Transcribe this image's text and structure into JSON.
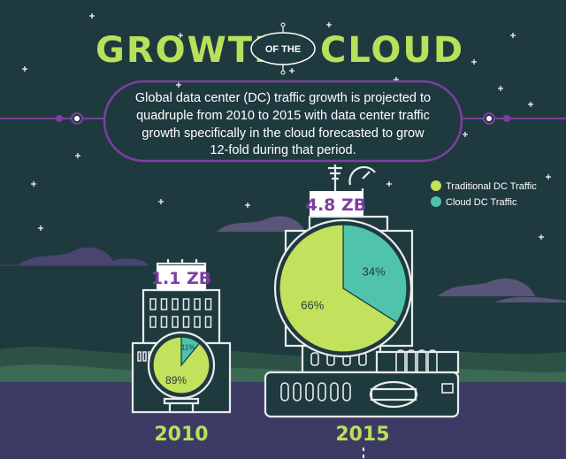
{
  "header": {
    "title_left": "GROWTH",
    "title_middle": "OF THE",
    "title_right": "CLOUD"
  },
  "intro": {
    "lines": [
      "Global data center (DC) traffic growth is projected to",
      "quadruple from 2010 to 2015 with data center traffic",
      "growth specifically in the cloud forecasted to grow",
      "12-fold during that period."
    ]
  },
  "colors": {
    "background": "#1f3a3f",
    "traditional": "#c2e15c",
    "cloud": "#4fc3ab",
    "accent_purple": "#7b3fa0",
    "outline": "#e8ecec"
  },
  "chart_data": {
    "type": "pie",
    "legend_position": "top-right",
    "legend": [
      {
        "name": "Traditional DC Traffic",
        "color": "#c2e15c"
      },
      {
        "name": "Cloud DC Traffic",
        "color": "#4fc3ab"
      }
    ],
    "charts": [
      {
        "year": "2010",
        "total_label": "1.1 ZB",
        "slices": [
          {
            "name": "Traditional DC Traffic",
            "value": 89,
            "label": "89%"
          },
          {
            "name": "Cloud DC Traffic",
            "value": 11,
            "label": "11%"
          }
        ]
      },
      {
        "year": "2015",
        "total_label": "4.8 ZB",
        "slices": [
          {
            "name": "Traditional DC Traffic",
            "value": 66,
            "label": "66%"
          },
          {
            "name": "Cloud DC Traffic",
            "value": 34,
            "label": "34%"
          }
        ]
      }
    ]
  }
}
